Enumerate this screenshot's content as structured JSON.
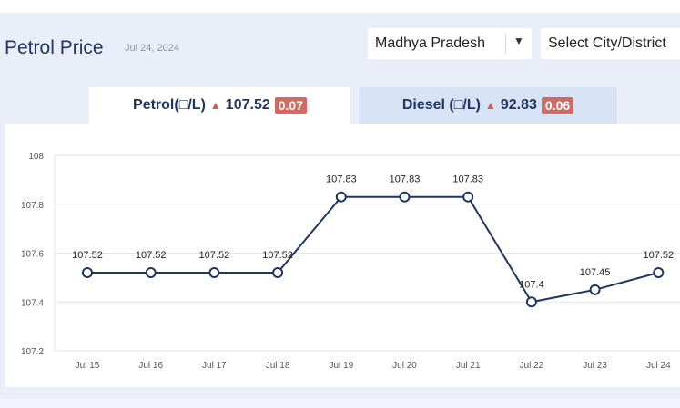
{
  "header": {
    "title": "Petrol Price",
    "date": "Jul 24, 2024",
    "state_select": "Madhya Pradesh",
    "city_select": "Select City/District"
  },
  "tabs": [
    {
      "name": "Petrol(□/L)",
      "price": "107.52",
      "change": "0.07"
    },
    {
      "name": "Diesel (□/L)",
      "price": "92.83",
      "change": "0.06"
    }
  ],
  "colors": {
    "line": "#1f3760",
    "badge": "#d06b63",
    "up_arrow": "#d05a52"
  },
  "chart_data": {
    "type": "line",
    "categories": [
      "Jul 15",
      "Jul 16",
      "Jul 17",
      "Jul 18",
      "Jul 19",
      "Jul 20",
      "Jul 21",
      "Jul 22",
      "Jul 23",
      "Jul 24"
    ],
    "values": [
      107.52,
      107.52,
      107.52,
      107.52,
      107.83,
      107.83,
      107.83,
      107.4,
      107.45,
      107.52
    ],
    "data_labels": [
      "107.52",
      "107.52",
      "107.52",
      "107.52",
      "107.83",
      "107.83",
      "107.83",
      "107.4",
      "107.45",
      "107.52"
    ],
    "yticks": [
      "107.2",
      "107.4",
      "107.6",
      "107.8",
      "108"
    ],
    "ylim": [
      107.2,
      108
    ],
    "grid": true
  }
}
